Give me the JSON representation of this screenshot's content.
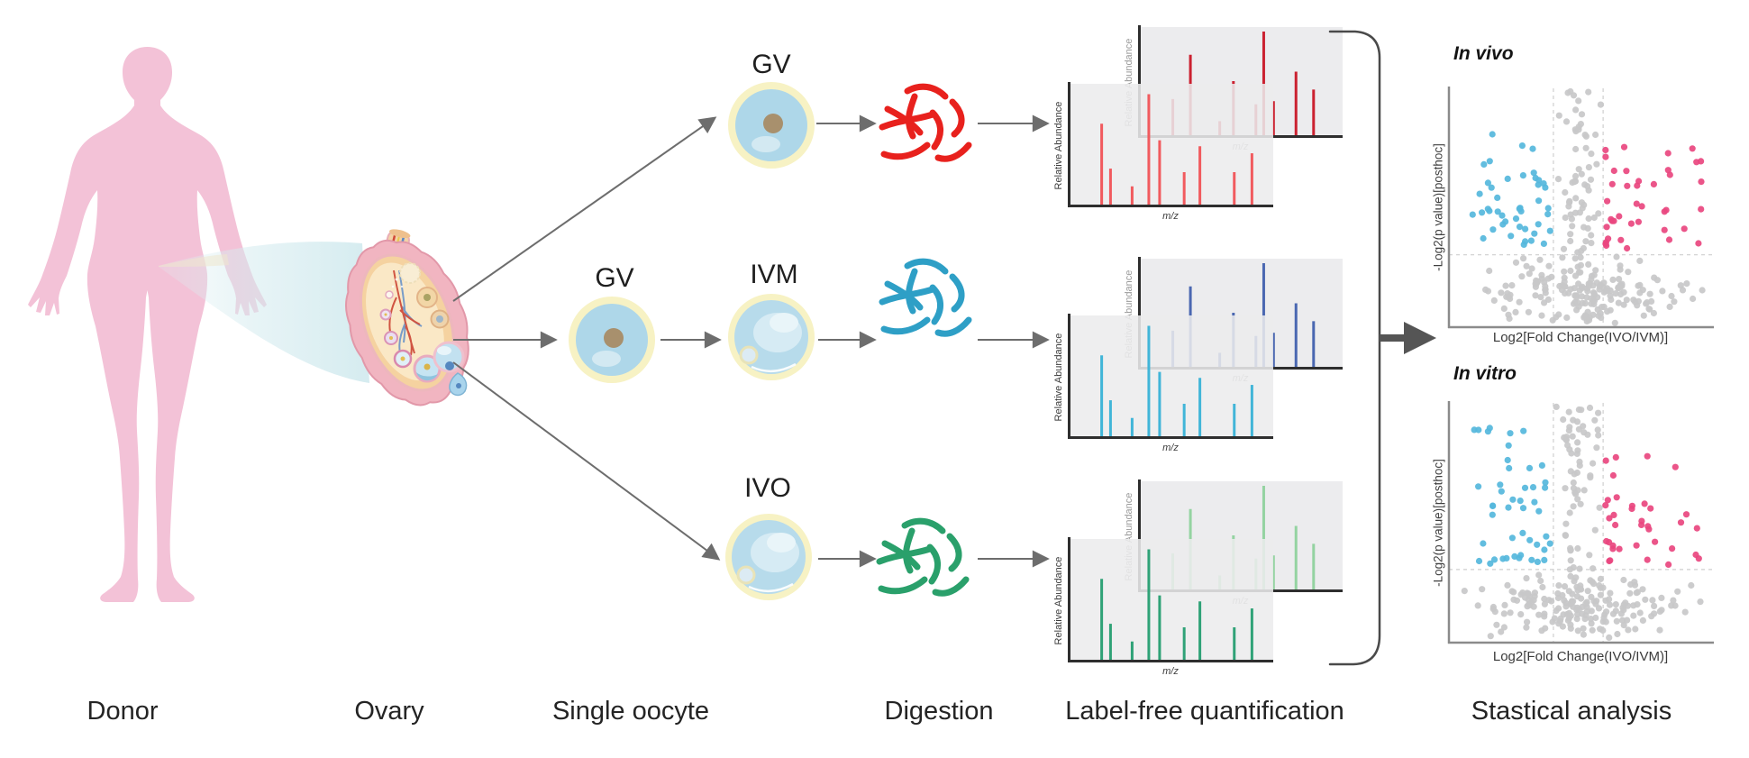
{
  "figure": {
    "background": "#ffffff"
  },
  "labels": {
    "gv_top": "GV",
    "gv_mid": "GV",
    "ivm": "IVM",
    "ivo": "IVO"
  },
  "stages": [
    "Donor",
    "Ovary",
    "Single oocyte",
    "Digestion",
    "Label-free quantification",
    "Stastical analysis"
  ],
  "colors": {
    "body_pink": "#f3c2d7",
    "beam": "#cfe9ee",
    "arrow_gray": "#6d6d6d",
    "bracket_gray": "#4a4a4a",
    "peptide_red": "#e8211d",
    "peptide_blue": "#2e9fc6",
    "peptide_green": "#2aa06b",
    "oocyte_blue": "#aed7e9",
    "oocyte_ring": "#f7f2c4",
    "gv_nucleus": "#a8906d"
  },
  "chart_data": [
    {
      "type": "bar",
      "id": "ms_spectra",
      "title": "Label-free quantification schematic mass spectra",
      "xlabel": "m/z",
      "ylabel": "Relative Abundance",
      "bars_back": {
        "x": [
          0.15,
          0.24,
          0.39,
          0.46,
          0.575,
          0.615,
          0.665,
          0.78,
          0.87
        ],
        "h": [
          0.36,
          0.78,
          0.15,
          0.53,
          0.31,
          1.0,
          0.34,
          0.62,
          0.45
        ]
      },
      "bars_front": {
        "x": [
          0.145,
          0.19,
          0.3,
          0.385,
          0.44,
          0.565,
          0.645,
          0.82,
          0.91
        ],
        "h": [
          0.7,
          0.32,
          0.17,
          0.95,
          0.56,
          0.29,
          0.51,
          0.29,
          0.45
        ]
      },
      "ylim": [
        0,
        1
      ],
      "grid": false,
      "groups": [
        {
          "name": "GV",
          "back_color": "#cb2130",
          "front_color": "#f15a5e"
        },
        {
          "name": "IVM",
          "back_color": "#4a67b1",
          "front_color": "#41b5d8"
        },
        {
          "name": "IVO",
          "back_color": "#94d3a1",
          "front_color": "#2fa277"
        }
      ]
    },
    {
      "type": "scatter",
      "id": "volcano_in_vivo",
      "title": "In vivo",
      "xlabel": "Log2[Fold Change(IVO/IVM)]",
      "ylabel": "-Log2(p value)[posthoc]",
      "x_threshold_lines": [
        0.397,
        0.586
      ],
      "y_threshold_line": 0.697,
      "seed": 7,
      "clusters": [
        {
          "name": "nonsignificant-column",
          "color": "#c8c8c9",
          "count": 92,
          "x": [
            0.4,
            0.59
          ],
          "xmode": "c",
          "y": [
            0.01,
            0.98
          ],
          "ymode": "u"
        },
        {
          "name": "nonsignificant-cloud",
          "color": "#c8c8c9",
          "count": 155,
          "x": [
            0.02,
            0.99
          ],
          "xmode": "c",
          "y": [
            0.7,
            0.99
          ],
          "ymode": "c"
        },
        {
          "name": "down-regulated",
          "color": "#55b7dc",
          "count": 44,
          "x": [
            0.03,
            0.385
          ],
          "xmode": 0.62,
          "y": [
            0.06,
            0.675
          ],
          "ymode": 0.5
        },
        {
          "name": "up-regulated",
          "color": "#e9477f",
          "count": 40,
          "x": [
            0.595,
            0.97
          ],
          "xmode": 1.7,
          "y": [
            0.08,
            0.675
          ],
          "ymode": 0.5
        }
      ]
    },
    {
      "type": "scatter",
      "id": "volcano_in_vitro",
      "title": "In vitro",
      "xlabel": "Log2[Fold Change(IVO/IVM)]",
      "ylabel": "-Log2(p value)[posthoc]",
      "x_threshold_lines": [
        0.397,
        0.586
      ],
      "y_threshold_line": 0.695,
      "seed": 13,
      "clusters": [
        {
          "name": "nonsignificant-column",
          "color": "#c8c8c9",
          "count": 96,
          "x": [
            0.4,
            0.59
          ],
          "xmode": "c",
          "y": [
            0.01,
            0.98
          ],
          "ymode": "u"
        },
        {
          "name": "nonsignificant-cloud",
          "color": "#c8c8c9",
          "count": 150,
          "x": [
            0.02,
            0.99
          ],
          "xmode": "c",
          "y": [
            0.7,
            0.99
          ],
          "ymode": "c"
        },
        {
          "name": "down-regulated",
          "color": "#55b7dc",
          "count": 46,
          "x": [
            0.03,
            0.385
          ],
          "xmode": 0.62,
          "y": [
            0.05,
            0.675
          ],
          "ymode": 0.5
        },
        {
          "name": "up-regulated",
          "color": "#e9477f",
          "count": 36,
          "x": [
            0.595,
            0.97
          ],
          "xmode": 1.7,
          "y": [
            0.07,
            0.675
          ],
          "ymode": 0.5
        }
      ]
    }
  ]
}
